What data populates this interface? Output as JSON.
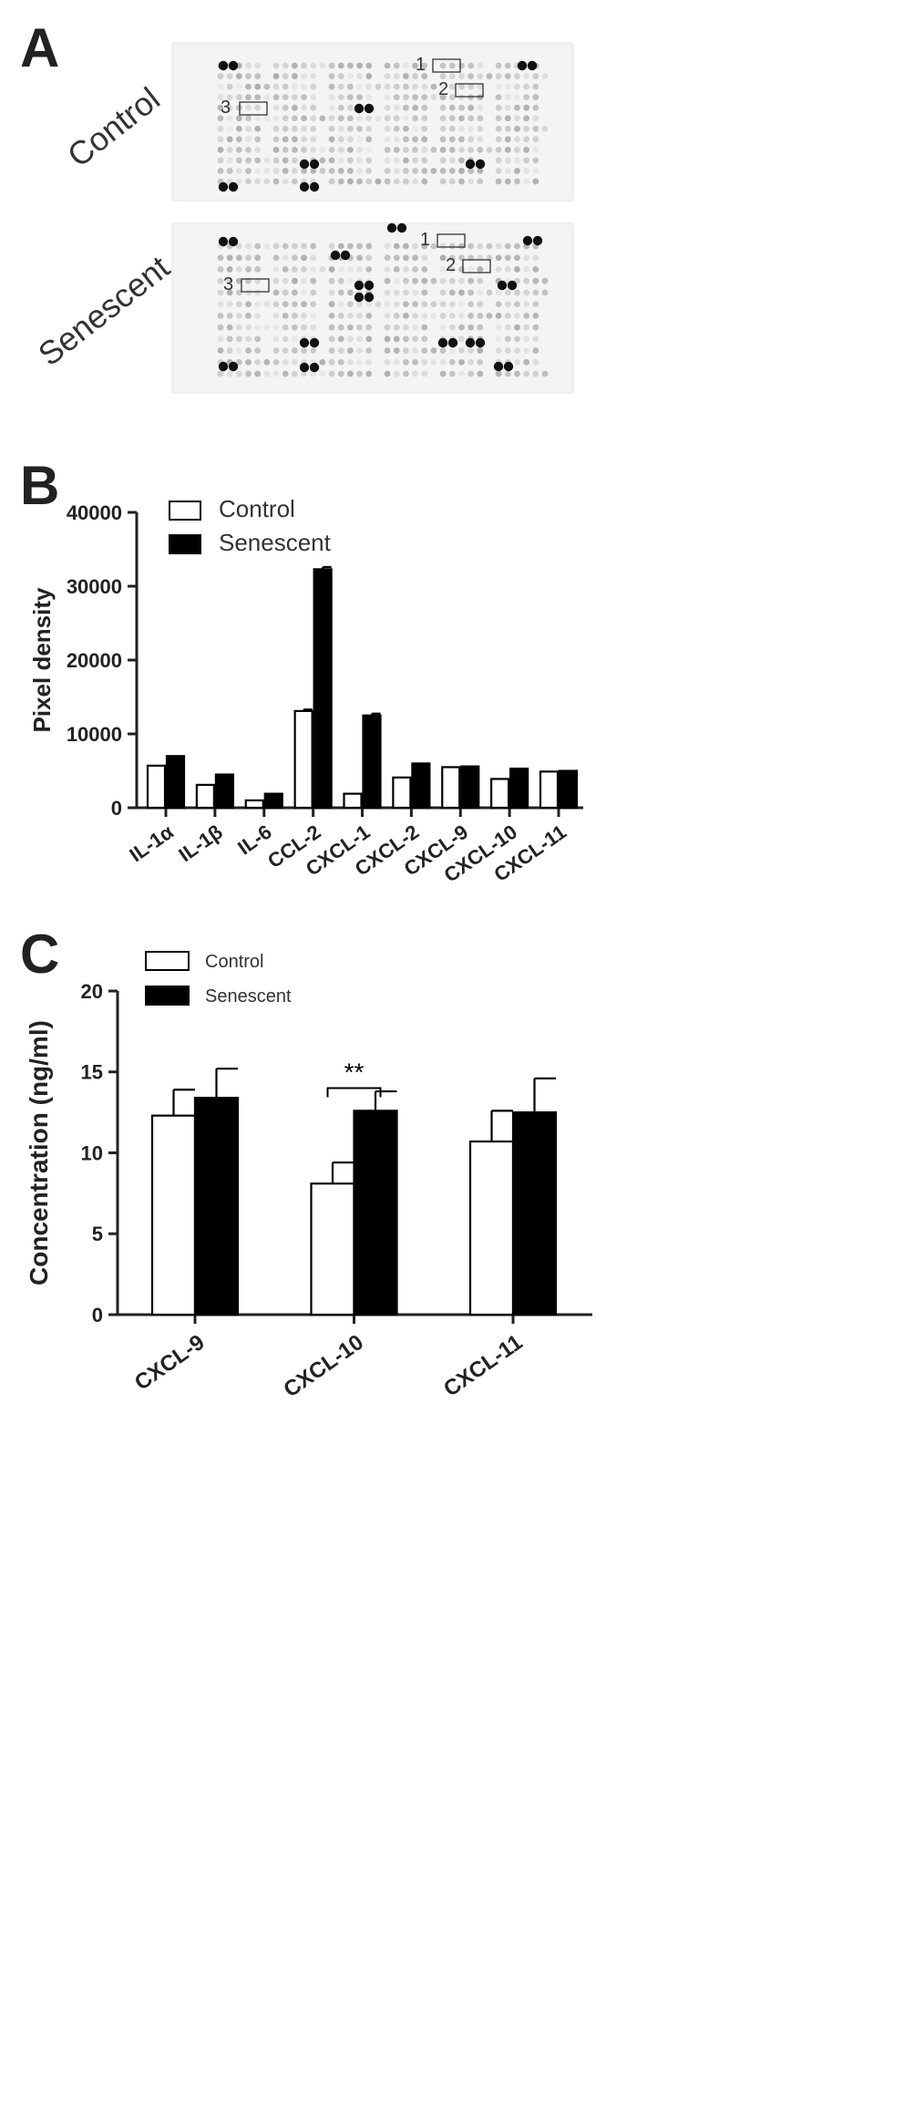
{
  "panels": {
    "a_letter": "A",
    "b_letter": "B",
    "c_letter": "C"
  },
  "array": {
    "row_labels": [
      "Control",
      "Senescent"
    ],
    "box_labels": [
      "1",
      "2",
      "3"
    ]
  },
  "colors": {
    "control_fill": "#ffffff",
    "senescent_fill": "#000000",
    "axis": "#222222"
  },
  "chart_data": [
    {
      "type": "bar",
      "panel": "B",
      "categories": [
        "IL-1α",
        "IL-1β",
        "IL-6",
        "CCL-2",
        "CXCL-1",
        "CXCL-2",
        "CXCL-9",
        "CXCL-10",
        "CXCL-11"
      ],
      "series": [
        {
          "name": "Control",
          "values": [
            5700,
            3100,
            1000,
            13100,
            1900,
            4100,
            5500,
            3900,
            4900
          ],
          "errors": [
            0,
            0,
            0,
            200,
            0,
            0,
            0,
            0,
            0
          ]
        },
        {
          "name": "Senescent",
          "values": [
            7000,
            4500,
            1900,
            32300,
            12500,
            6000,
            5600,
            5300,
            5000
          ],
          "errors": [
            0,
            0,
            0,
            300,
            250,
            0,
            0,
            0,
            0
          ]
        }
      ],
      "ylabel": "Pixel density",
      "ylim": [
        0,
        40000
      ],
      "yticks": [
        0,
        10000,
        20000,
        30000,
        40000
      ],
      "legend": "top-left",
      "grid": false
    },
    {
      "type": "bar",
      "panel": "C",
      "categories": [
        "CXCL-9",
        "CXCL-10",
        "CXCL-11"
      ],
      "series": [
        {
          "name": "Control",
          "values": [
            12.3,
            8.1,
            10.7
          ],
          "errors": [
            1.6,
            1.3,
            1.9
          ]
        },
        {
          "name": "Senescent",
          "values": [
            13.4,
            12.6,
            12.5
          ],
          "errors": [
            1.8,
            1.2,
            2.1
          ]
        }
      ],
      "ylabel": "Concentration (ng/ml)",
      "ylim": [
        0,
        20
      ],
      "yticks": [
        0,
        5,
        10,
        15,
        20
      ],
      "legend": "top-left",
      "grid": false,
      "annotations": [
        {
          "category": "CXCL-10",
          "text": "**"
        }
      ]
    }
  ]
}
